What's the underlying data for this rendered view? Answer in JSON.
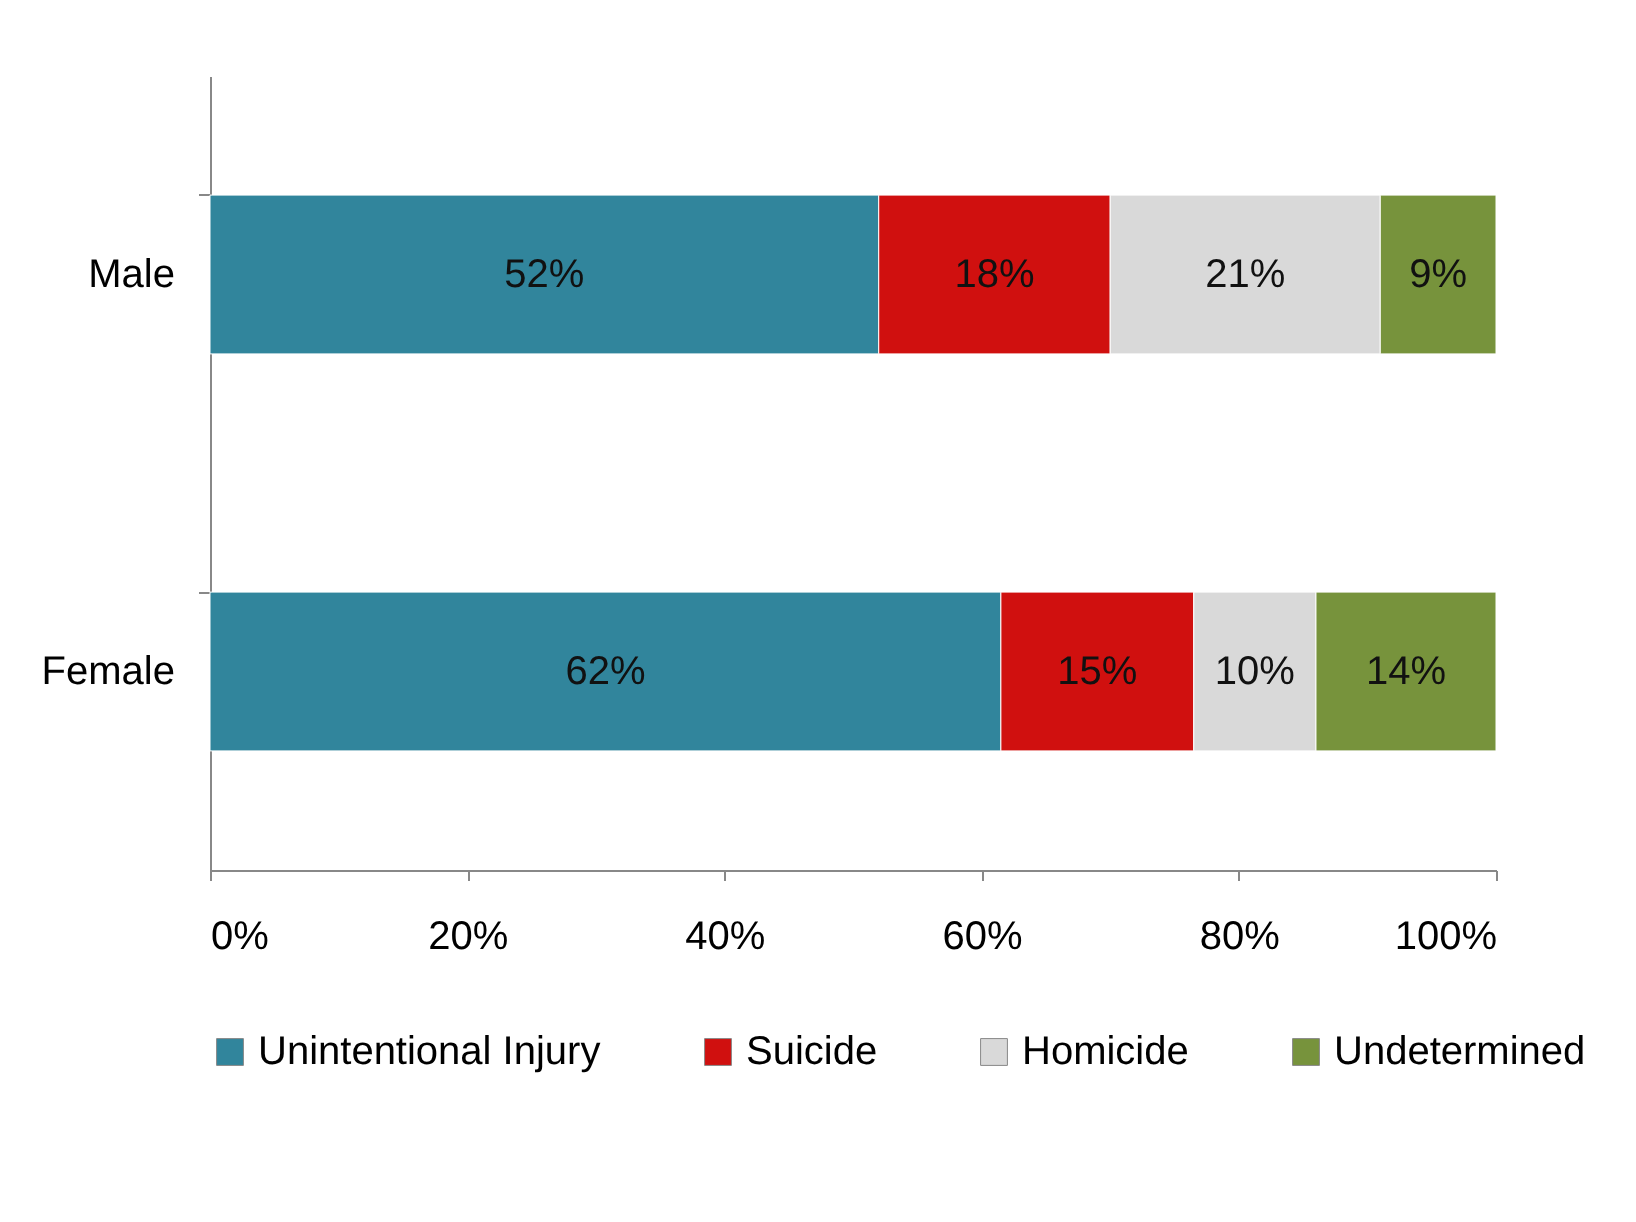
{
  "chart_data": {
    "type": "bar",
    "orientation": "horizontal",
    "stacked": true,
    "categories": [
      "Male",
      "Female"
    ],
    "series": [
      {
        "name": "Unintentional Injury",
        "color": "#31859c",
        "values": [
          52,
          61.5
        ],
        "value_labels": [
          "52%",
          "62%"
        ]
      },
      {
        "name": "Suicide",
        "color": "#d0100f",
        "values": [
          18,
          15
        ],
        "value_labels": [
          "18%",
          "15%"
        ]
      },
      {
        "name": "Homicide",
        "color": "#d9d9d9",
        "values": [
          21,
          9.5
        ],
        "value_labels": [
          "21%",
          "10%"
        ]
      },
      {
        "name": "Undetermined",
        "color": "#77933c",
        "values": [
          9,
          14
        ],
        "value_labels": [
          "9%",
          "14%"
        ]
      }
    ],
    "xlim": [
      0,
      100
    ],
    "xticks": [
      {
        "value": 0,
        "label": "0%"
      },
      {
        "value": 20,
        "label": "20%"
      },
      {
        "value": 40,
        "label": "40%"
      },
      {
        "value": 60,
        "label": "60%"
      },
      {
        "value": 80,
        "label": "80%"
      },
      {
        "value": 100,
        "label": "100%"
      }
    ],
    "legend": "bottom",
    "grid": false
  }
}
